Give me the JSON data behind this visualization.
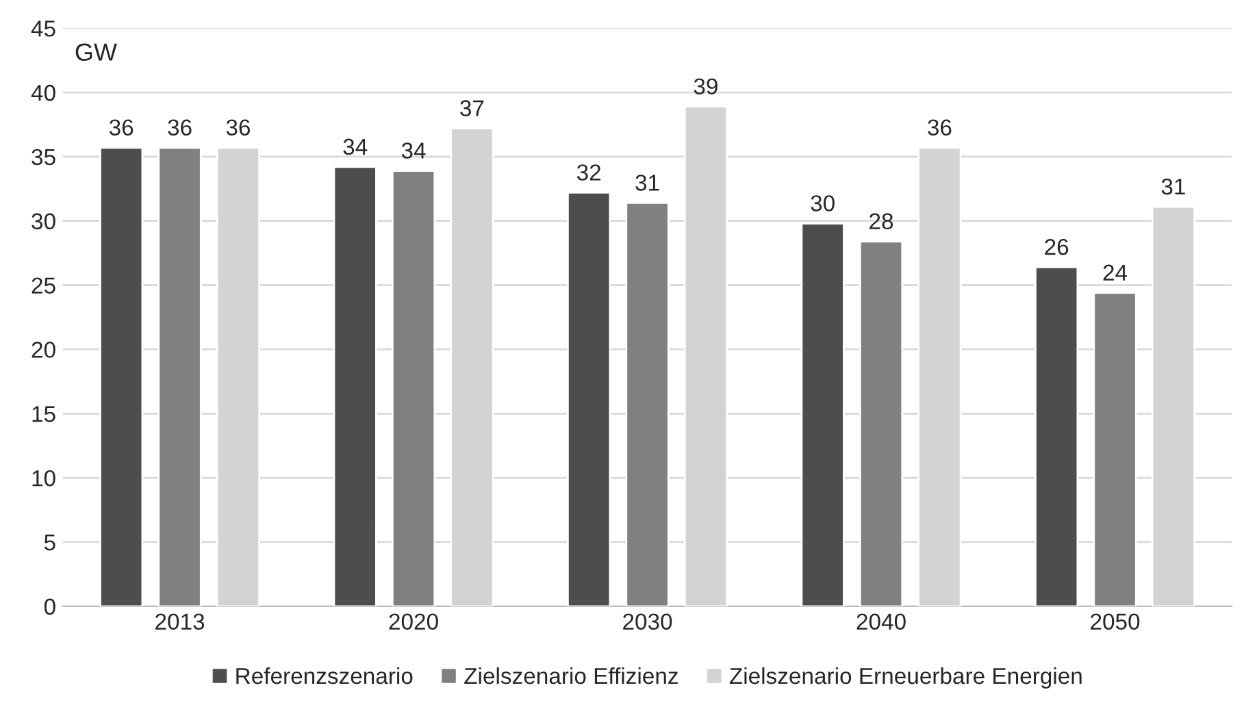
{
  "chart_data": {
    "type": "bar",
    "ylabel": "GW",
    "categories": [
      "2013",
      "2020",
      "2030",
      "2040",
      "2050"
    ],
    "series": [
      {
        "name": "Referenzszenario",
        "color": "#4d4d4d",
        "values": [
          35.7,
          34.2,
          32.2,
          29.8,
          26.4
        ],
        "value_labels": [
          "36",
          "34",
          "32",
          "30",
          "26"
        ]
      },
      {
        "name": "Zielszenario Effizienz",
        "color": "#808080",
        "values": [
          35.7,
          33.9,
          31.4,
          28.4,
          24.4
        ],
        "value_labels": [
          "36",
          "34",
          "31",
          "28",
          "24"
        ]
      },
      {
        "name": "Zielszenario Erneuerbare Energien",
        "color": "#d3d3d3",
        "values": [
          35.7,
          37.2,
          38.9,
          35.7,
          31.1
        ],
        "value_labels": [
          "36",
          "37",
          "39",
          "36",
          "31"
        ]
      }
    ],
    "ylim": [
      0,
      45
    ],
    "yticks": [
      0,
      5,
      10,
      15,
      20,
      25,
      30,
      35,
      40,
      45
    ],
    "grid": "y",
    "legend": "bottom"
  }
}
